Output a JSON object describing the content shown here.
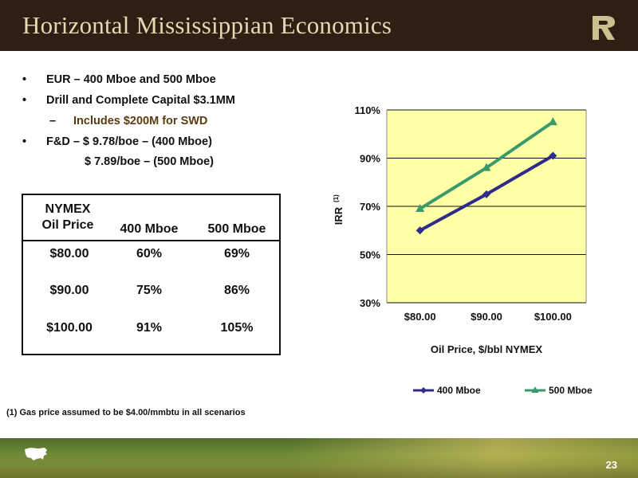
{
  "slide": {
    "title": "Horizontal Mississippian Economics",
    "page_number": "23",
    "footnote": "(1)  Gas price assumed to be $4.00/mmbtu in all scenarios"
  },
  "bullets": [
    {
      "marker": "•",
      "text": "EUR – 400 Mboe and 500 Mboe"
    },
    {
      "marker": "•",
      "text": "Drill and Complete Capital $3.1MM"
    },
    {
      "marker": "–",
      "text": "Includes $200M for SWD"
    },
    {
      "marker": "•",
      "text": "F&D – $ 9.78/boe – (400 Mboe)"
    },
    {
      "marker": "",
      "text": "$ 7.89/boe – (500 Mboe)"
    }
  ],
  "table": {
    "headers": [
      "NYMEX\nOil Price",
      "400 Mboe",
      "500 Mboe"
    ],
    "header_line1": "NYMEX",
    "header_line2": "Oil Price",
    "rows": [
      [
        "$80.00",
        "60%",
        "69%"
      ],
      [
        "$90.00",
        "75%",
        "86%"
      ],
      [
        "$100.00",
        "91%",
        "105%"
      ]
    ]
  },
  "chart_data": {
    "type": "line",
    "categories": [
      "$80.00",
      "$90.00",
      "$100.00"
    ],
    "series": [
      {
        "name": "400 Mboe",
        "values": [
          60,
          75,
          91
        ],
        "color": "#2e2b8a",
        "marker": "diamond"
      },
      {
        "name": "500 Mboe",
        "values": [
          69,
          86,
          105
        ],
        "color": "#3a9a6a",
        "marker": "triangle"
      }
    ],
    "xlabel": "Oil Price, $/bbl NYMEX",
    "ylabel": "IRR",
    "ylabel_sup": "(1)",
    "ylim": [
      30,
      110
    ],
    "yticks": [
      30,
      50,
      70,
      90,
      110
    ],
    "ytick_labels": [
      "30%",
      "50%",
      "70%",
      "90%",
      "110%"
    ],
    "grid": true,
    "plot_background": "#ffffa8",
    "legend": "bottom"
  }
}
